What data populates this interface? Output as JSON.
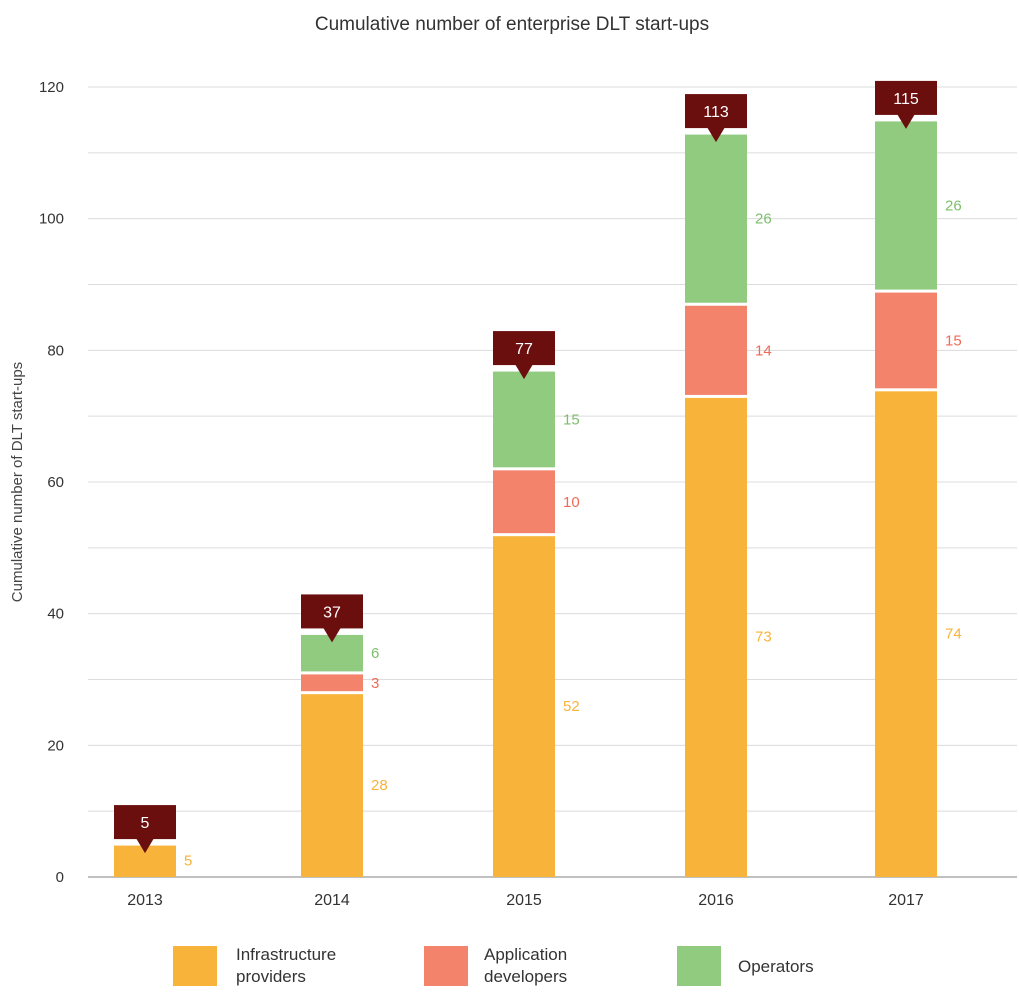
{
  "chart_data": {
    "type": "bar",
    "stacked": true,
    "title": "Cumulative number of enterprise DLT start-ups",
    "xlabel": "",
    "ylabel": "Cumulative number of DLT start-ups",
    "ylim": [
      0,
      120
    ],
    "yticks": [
      "0",
      "20",
      "40",
      "60",
      "80",
      "100",
      "120"
    ],
    "grid": true,
    "legend_position": "bottom",
    "categories": [
      "2013",
      "2014",
      "2015",
      "2016",
      "2017"
    ],
    "series": [
      {
        "name": "Infrastructure providers",
        "legend_lines": [
          "Infrastructure",
          "providers"
        ],
        "color": "#f8b33b",
        "values": [
          5,
          28,
          52,
          73,
          74
        ]
      },
      {
        "name": "Application developers",
        "legend_lines": [
          "Application",
          "developers"
        ],
        "color": "#f4836c",
        "values": [
          0,
          3,
          10,
          14,
          15
        ]
      },
      {
        "name": "Operators",
        "legend_lines": [
          "Operators"
        ],
        "color": "#90cb80",
        "values": [
          0,
          6,
          15,
          26,
          26
        ]
      }
    ],
    "totals": [
      5,
      37,
      77,
      113,
      115
    ],
    "total_label_color": "#6a0f0d",
    "segment_label_colors": [
      "#f8b33b",
      "#ef6a57",
      "#7dbf6c"
    ]
  }
}
